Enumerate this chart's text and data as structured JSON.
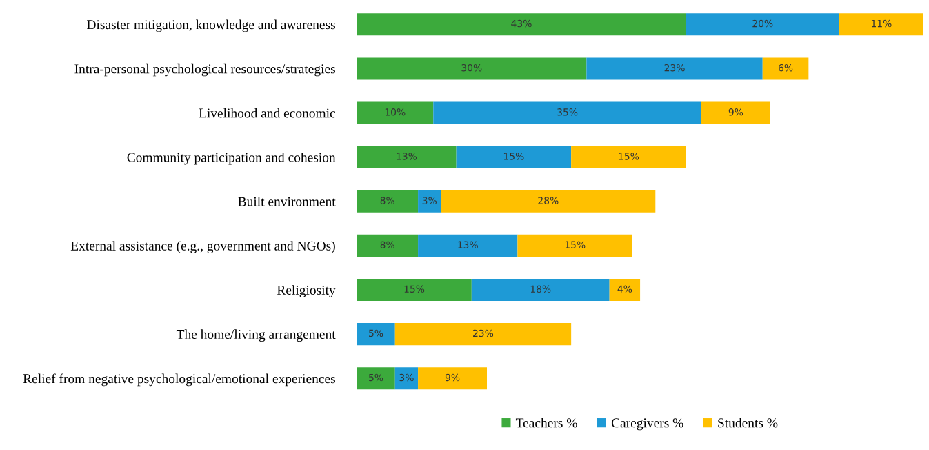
{
  "chart_data": {
    "type": "bar",
    "orientation": "horizontal",
    "stacked": true,
    "tick_labels": "y",
    "legend": "bottom",
    "categories": [
      "Disaster mitigation, knowledge and awareness",
      "Intra-personal psychological resources/strategies",
      "Livelihood and economic",
      "Community participation and cohesion",
      "Built environment",
      "External assistance (e.g., government and NGOs)",
      "Religiosity",
      "The home/living arrangement",
      "Relief from negative psychological/emotional experiences"
    ],
    "series": [
      {
        "name": "Teachers %",
        "color": "#3caa3c",
        "values": [
          43,
          30,
          10,
          13,
          8,
          8,
          15,
          null,
          5
        ],
        "value_labels": [
          "43%",
          "30%",
          "10%",
          "13%",
          "8%",
          "8%",
          "15%",
          null,
          "5%"
        ]
      },
      {
        "name": "Caregivers %",
        "color": "#1e9ad6",
        "values": [
          20,
          23,
          35,
          15,
          3,
          13,
          18,
          5,
          3
        ],
        "value_labels": [
          "20%",
          "23%",
          "35%",
          "15%",
          "3%",
          "13%",
          "18%",
          "5%",
          "3%"
        ]
      },
      {
        "name": "Students %",
        "color": "#ffc000",
        "values": [
          11,
          6,
          9,
          15,
          28,
          15,
          4,
          23,
          9
        ],
        "value_labels": [
          "11%",
          "6%",
          "9%",
          "15%",
          "28%",
          "15%",
          "4%",
          "23%",
          "9%"
        ]
      }
    ]
  }
}
